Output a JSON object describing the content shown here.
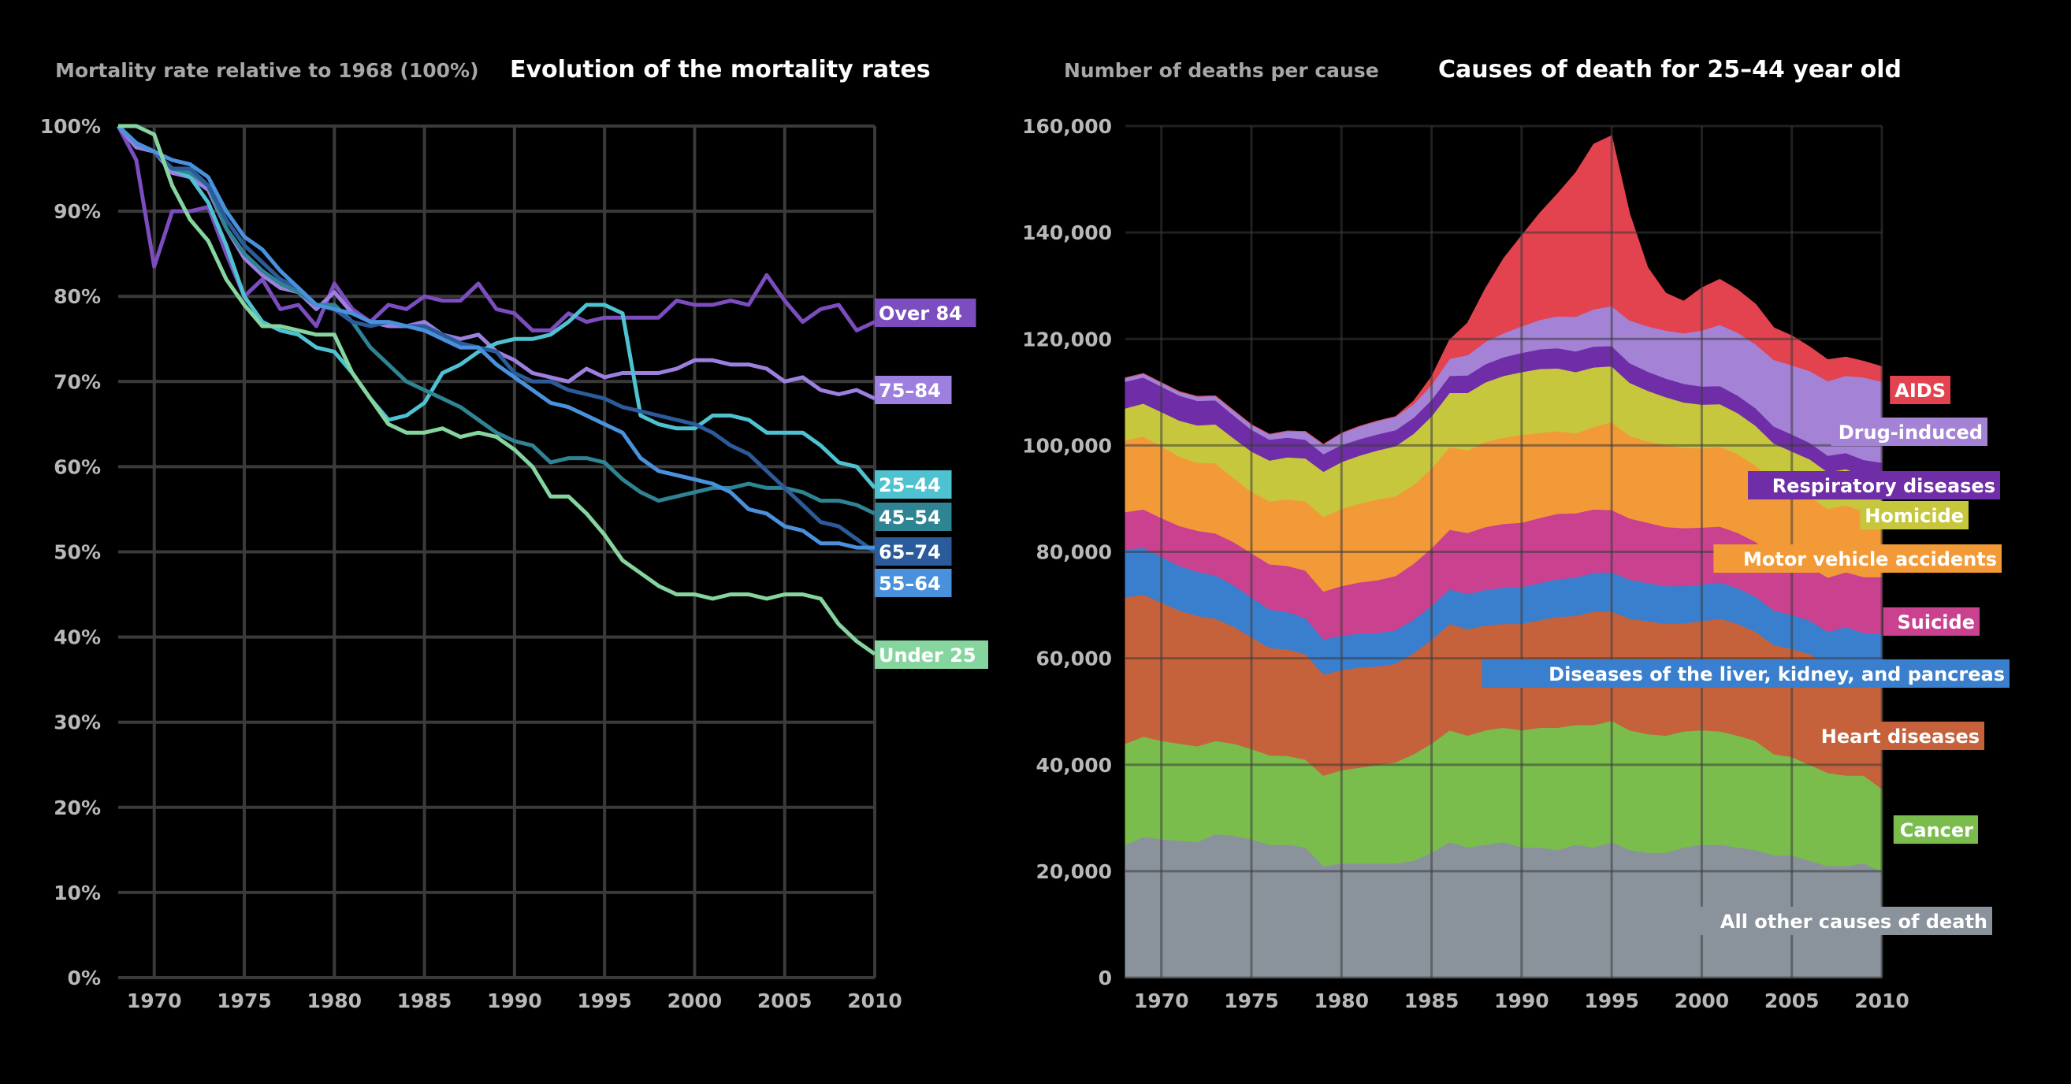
{
  "chart_data": [
    {
      "type": "line",
      "title": "Evolution of the mortality rates",
      "ylabel": "Mortality rate relative to 1968 (100%)",
      "xlabel": "",
      "xlim": [
        1968,
        2010
      ],
      "ylim": [
        0,
        100
      ],
      "x_ticks": [
        "1970",
        "1975",
        "1980",
        "1985",
        "1990",
        "1995",
        "2000",
        "2005",
        "2010"
      ],
      "y_ticks": [
        "0%",
        "10%",
        "20%",
        "30%",
        "40%",
        "50%",
        "60%",
        "70%",
        "80%",
        "90%",
        "100%"
      ],
      "grid": true,
      "legend": "end-of-line labels",
      "x": [
        1968,
        1969,
        1970,
        1971,
        1972,
        1973,
        1974,
        1975,
        1976,
        1977,
        1978,
        1979,
        1980,
        1981,
        1982,
        1983,
        1984,
        1985,
        1986,
        1987,
        1988,
        1989,
        1990,
        1991,
        1992,
        1993,
        1994,
        1995,
        1996,
        1997,
        1998,
        1999,
        2000,
        2001,
        2002,
        2003,
        2004,
        2005,
        2006,
        2007,
        2008,
        2009,
        2010
      ],
      "series": [
        {
          "name": "Over 84",
          "color": "#7c4dbe",
          "values": [
            100,
            96,
            83.5,
            90,
            90,
            90.5,
            85,
            80,
            82,
            78.5,
            79,
            76.5,
            81.5,
            78.5,
            77,
            79,
            78.5,
            80,
            79.5,
            79.5,
            81.5,
            78.5,
            78,
            76,
            76,
            78,
            77,
            77.5,
            77.5,
            77.5,
            77.5,
            79.5,
            79,
            79,
            79.5,
            79,
            82.5,
            79.5,
            77,
            78.5,
            79,
            76,
            77
          ]
        },
        {
          "name": "75–84",
          "color": "#9d7fe0",
          "values": [
            100,
            97.5,
            97,
            94.5,
            94,
            92.5,
            88,
            84.5,
            82.5,
            81,
            80.5,
            78.5,
            80.5,
            78,
            77,
            76.5,
            76.5,
            77,
            75.5,
            75,
            75.5,
            73.5,
            72.5,
            71,
            70.5,
            70,
            71.5,
            70.5,
            71,
            71,
            71,
            71.5,
            72.5,
            72.5,
            72,
            72,
            71.5,
            70,
            70.5,
            69,
            68.5,
            69,
            68
          ]
        },
        {
          "name": "25–44",
          "color": "#4fc2d2",
          "values": [
            100,
            98,
            97,
            95,
            94,
            91,
            86,
            80,
            77,
            76,
            75.5,
            74,
            73.5,
            71,
            68,
            65.5,
            66,
            67.5,
            71,
            72,
            73.5,
            74.5,
            75,
            75,
            75.5,
            77,
            79,
            79,
            78,
            66,
            65,
            64.5,
            64.5,
            66,
            66,
            65.5,
            64,
            64,
            64,
            62.5,
            60.5,
            60,
            57.5
          ]
        },
        {
          "name": "45–54",
          "color": "#2f8494",
          "values": [
            100,
            98,
            97,
            95,
            94.5,
            93,
            88,
            85,
            83,
            81.5,
            80.5,
            79,
            79,
            77,
            74,
            72,
            70,
            69,
            68,
            67,
            65.5,
            64,
            63,
            62.5,
            60.5,
            61,
            61,
            60.5,
            58.5,
            57,
            56,
            56.5,
            57,
            57.5,
            57.5,
            58,
            57.5,
            57.5,
            57,
            56,
            56,
            55.5,
            54.5
          ]
        },
        {
          "name": "65–74",
          "color": "#2b5b9a",
          "values": [
            100,
            98,
            97,
            95,
            95,
            93,
            89,
            86,
            84,
            82,
            81,
            79,
            78.5,
            77,
            76.5,
            77,
            76.5,
            76.5,
            75.5,
            74.5,
            74,
            73.5,
            71,
            70,
            70,
            69,
            68.5,
            68,
            67,
            66.5,
            66,
            65.5,
            65,
            64,
            62.5,
            61.5,
            59.5,
            57.5,
            55.5,
            53.5,
            53,
            51.5,
            50
          ]
        },
        {
          "name": "55–64",
          "color": "#4a91dd",
          "values": [
            100,
            98,
            97,
            96,
            95.5,
            94,
            90,
            87,
            85.5,
            83,
            81,
            79,
            78.5,
            78,
            77,
            77,
            76.5,
            76,
            75,
            74,
            74,
            72,
            70.5,
            69,
            67.5,
            67,
            66,
            65,
            64,
            61,
            59.5,
            59,
            58.5,
            58,
            57,
            55,
            54.5,
            53,
            52.5,
            51,
            51,
            50.5,
            50.5
          ]
        },
        {
          "name": "Under 25",
          "color": "#86d59f",
          "values": [
            100,
            100,
            99,
            93,
            89,
            86.5,
            82,
            79,
            76.5,
            76.5,
            76,
            75.5,
            75.5,
            71,
            68,
            65,
            64,
            64,
            64.5,
            63.5,
            64,
            63.5,
            62,
            60,
            56.5,
            56.5,
            54.5,
            52,
            49,
            47.5,
            46,
            45,
            45,
            44.5,
            45,
            45,
            44.5,
            45,
            45,
            44.5,
            41.5,
            39.5,
            38
          ]
        }
      ],
      "end_labels": [
        {
          "text": "Over 84",
          "color": "#7c4dbe"
        },
        {
          "text": "75–84",
          "color": "#9d7fe0"
        },
        {
          "text": "25–44",
          "color": "#4fc2d2"
        },
        {
          "text": "45–54",
          "color": "#2f8494"
        },
        {
          "text": "65–74",
          "color": "#2b5b9a"
        },
        {
          "text": "55–64",
          "color": "#4a91dd"
        },
        {
          "text": "Under 25",
          "color": "#86d59f"
        }
      ]
    },
    {
      "type": "area",
      "stacked": true,
      "title": "Causes of death for 25–44 year old",
      "ylabel": "Number of deaths per cause",
      "xlabel": "",
      "xlim": [
        1968,
        2010
      ],
      "ylim": [
        0,
        160000
      ],
      "x_ticks": [
        "1970",
        "1975",
        "1980",
        "1985",
        "1990",
        "1995",
        "2000",
        "2005",
        "2010"
      ],
      "y_ticks": [
        "0",
        "20,000",
        "40,000",
        "60,000",
        "80,000",
        "100,000",
        "120,000",
        "140,000",
        "160,000"
      ],
      "grid": true,
      "legend": "end-of-area labels",
      "x": [
        1968,
        1969,
        1970,
        1971,
        1972,
        1973,
        1974,
        1975,
        1976,
        1977,
        1978,
        1979,
        1980,
        1981,
        1982,
        1983,
        1984,
        1985,
        1986,
        1987,
        1988,
        1989,
        1990,
        1991,
        1992,
        1993,
        1994,
        1995,
        1996,
        1997,
        1998,
        1999,
        2000,
        2001,
        2002,
        2003,
        2004,
        2005,
        2006,
        2007,
        2008,
        2009,
        2010
      ],
      "series": [
        {
          "name": "All other causes of death",
          "color": "#8a929c",
          "values": [
            25000,
            26500,
            26000,
            25800,
            25500,
            27000,
            26700,
            26000,
            25000,
            25000,
            24500,
            21000,
            21500,
            21500,
            21500,
            21500,
            22000,
            23500,
            25500,
            24500,
            25000,
            25500,
            24500,
            24500,
            24000,
            25000,
            24500,
            25500,
            24000,
            23500,
            23500,
            24500,
            25000,
            25000,
            24500,
            24000,
            23000,
            23000,
            22000,
            21000,
            21000,
            21500,
            20000
          ]
        },
        {
          "name": "Cancer",
          "color": "#7abd4c",
          "values": [
            19000,
            18800,
            18500,
            18200,
            18000,
            17500,
            17300,
            17000,
            16800,
            16700,
            16500,
            17000,
            17500,
            18000,
            18500,
            19000,
            20000,
            20500,
            21000,
            21000,
            21500,
            21500,
            22000,
            22500,
            23000,
            22500,
            23000,
            22800,
            22500,
            22300,
            22000,
            21800,
            21500,
            21300,
            21000,
            20500,
            19000,
            18500,
            18000,
            17500,
            17000,
            16500,
            15500
          ]
        },
        {
          "name": "Heart diseases",
          "color": "#c5623c",
          "values": [
            27500,
            26700,
            26000,
            25000,
            24500,
            23000,
            22000,
            21000,
            20200,
            20000,
            19800,
            19000,
            18800,
            18800,
            18500,
            18500,
            19000,
            19500,
            20000,
            20000,
            19700,
            19500,
            20000,
            20200,
            20800,
            20500,
            21300,
            20500,
            21000,
            21200,
            21000,
            20300,
            20500,
            21200,
            21000,
            20500,
            20500,
            20300,
            20800,
            20300,
            21800,
            20800,
            23200
          ]
        },
        {
          "name": "Diseases of the liver, kidney, and pancreas",
          "color": "#3a7fce",
          "values": [
            9000,
            8800,
            8600,
            8400,
            8300,
            8100,
            7800,
            7500,
            7200,
            7000,
            6800,
            6600,
            6500,
            6400,
            6300,
            6300,
            6300,
            6400,
            6500,
            6600,
            6700,
            6800,
            6900,
            7000,
            7100,
            7200,
            7300,
            7400,
            7300,
            7200,
            7100,
            7000,
            6900,
            6800,
            6700,
            6600,
            6500,
            6400,
            6300,
            6200,
            6100,
            6000,
            5900
          ]
        },
        {
          "name": "Suicide",
          "color": "#c9418f",
          "values": [
            7000,
            7200,
            7300,
            7500,
            7700,
            7900,
            8100,
            8300,
            8500,
            8700,
            8900,
            9000,
            9300,
            9600,
            9900,
            10200,
            10500,
            10800,
            11200,
            11500,
            11800,
            12000,
            12100,
            12200,
            12300,
            12100,
            11900,
            11700,
            11500,
            11300,
            11100,
            10900,
            10700,
            10500,
            10400,
            10300,
            10200,
            10100,
            10100,
            10200,
            10300,
            10500,
            10700
          ]
        },
        {
          "name": "Motor vehicle accidents",
          "color": "#f39a38",
          "values": [
            13500,
            13700,
            13500,
            13000,
            12800,
            13200,
            12000,
            11500,
            11800,
            12500,
            13000,
            14000,
            14500,
            14800,
            15200,
            15000,
            14800,
            15000,
            15500,
            15500,
            16000,
            16200,
            16500,
            16000,
            15500,
            15000,
            15500,
            16500,
            15500,
            15300,
            15400,
            15100,
            14900,
            15000,
            14800,
            14300,
            13900,
            13500,
            13200,
            12900,
            12600,
            12300,
            12000
          ]
        },
        {
          "name": "Homicide",
          "color": "#c6c73d",
          "values": [
            6000,
            6200,
            6400,
            6800,
            7000,
            7300,
            7500,
            7600,
            7700,
            7900,
            8100,
            8500,
            8800,
            9000,
            9200,
            9400,
            9600,
            9800,
            10200,
            10800,
            11200,
            11600,
            11800,
            12000,
            11800,
            11500,
            11200,
            10500,
            10000,
            9500,
            9000,
            8500,
            8200,
            8000,
            7700,
            7500,
            7300,
            7100,
            7000,
            6900,
            6800,
            6700,
            6600
          ]
        },
        {
          "name": "Respiratory diseases",
          "color": "#6f2ea8",
          "values": [
            5000,
            4900,
            4800,
            4700,
            4600,
            4500,
            4300,
            4100,
            3900,
            3700,
            3500,
            3300,
            3200,
            3100,
            3000,
            3000,
            3000,
            3100,
            3200,
            3300,
            3400,
            3500,
            3600,
            3700,
            3800,
            3900,
            3900,
            3800,
            3700,
            3600,
            3500,
            3500,
            3400,
            3400,
            3300,
            3300,
            3200,
            3200,
            3100,
            3100,
            3000,
            3000,
            2900
          ]
        },
        {
          "name": "Drug-induced",
          "color": "#a482d6",
          "values": [
            700,
            700,
            700,
            700,
            800,
            800,
            900,
            900,
            1000,
            1200,
            1500,
            1800,
            2200,
            2400,
            2500,
            2500,
            2600,
            2800,
            3200,
            3800,
            4200,
            4500,
            5000,
            5500,
            6000,
            6500,
            7000,
            7500,
            8000,
            8500,
            9000,
            9500,
            10500,
            11500,
            11800,
            12000,
            12500,
            13000,
            13500,
            14000,
            14500,
            15500,
            15200
          ]
        },
        {
          "name": "AIDS",
          "color": "#e2434e",
          "values": [
            0,
            0,
            0,
            0,
            0,
            0,
            0,
            0,
            0,
            0,
            0,
            0,
            0,
            0,
            0,
            0,
            500,
            1500,
            3500,
            6000,
            10000,
            14000,
            17000,
            20000,
            23000,
            27000,
            31000,
            32000,
            20000,
            11000,
            7000,
            6000,
            8000,
            8500,
            8000,
            7500,
            6000,
            5500,
            4500,
            4000,
            3500,
            3000,
            2800
          ]
        }
      ],
      "end_labels": [
        {
          "text": "AIDS",
          "color": "#e2434e"
        },
        {
          "text": "Drug-induced",
          "color": "#a482d6"
        },
        {
          "text": "Respiratory diseases",
          "color": "#6f2ea8"
        },
        {
          "text": "Homicide",
          "color": "#c6c73d"
        },
        {
          "text": "Motor vehicle accidents",
          "color": "#f39a38"
        },
        {
          "text": "Suicide",
          "color": "#c9418f"
        },
        {
          "text": "Diseases of the liver, kidney, and pancreas",
          "color": "#3a7fce"
        },
        {
          "text": "Heart diseases",
          "color": "#c5623c"
        },
        {
          "text": "Cancer",
          "color": "#7abd4c"
        },
        {
          "text": "All other causes of death",
          "color": "#8a929c"
        }
      ]
    }
  ]
}
